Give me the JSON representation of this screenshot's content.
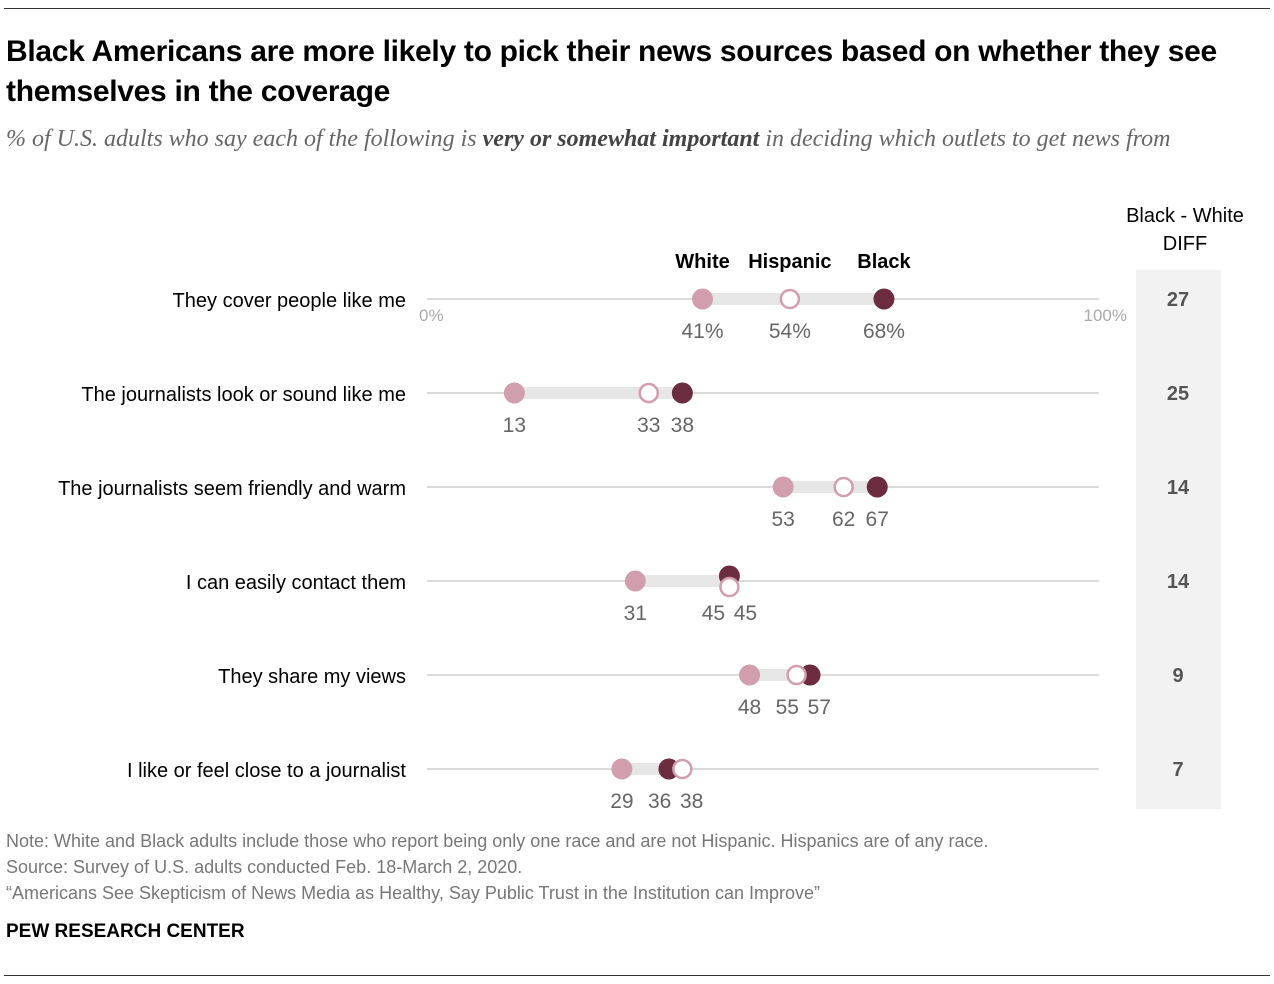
{
  "title": "Black Americans are more likely to pick their news sources based on whether they see themselves in the coverage",
  "subtitle": {
    "pre": "% of U.S. adults who say each of the following is ",
    "emph": "very or somewhat important",
    "post": " in deciding which outlets to get news from"
  },
  "chart_data": {
    "type": "dot",
    "xlim": [
      0,
      100
    ],
    "axis_labels": [
      "0%",
      "100%"
    ],
    "series": [
      {
        "name": "White",
        "color": "#d09eac",
        "style": "filled"
      },
      {
        "name": "Hispanic",
        "color": "#d09eac",
        "style": "hollow"
      },
      {
        "name": "Black",
        "color": "#6b2c40",
        "style": "filled"
      }
    ],
    "diff_header": [
      "Black - White",
      "DIFF"
    ],
    "rows": [
      {
        "label": "They cover people like me",
        "White": 41,
        "Hispanic": 54,
        "Black": 68,
        "diff": "27",
        "labels": {
          "White": "41%",
          "Hispanic": "54%",
          "Black": "68%"
        }
      },
      {
        "label": "The journalists look or sound like me",
        "White": 13,
        "Hispanic": 33,
        "Black": 38,
        "diff": "25",
        "labels": {
          "White": "13",
          "Hispanic": "33",
          "Black": "38"
        }
      },
      {
        "label": "The journalists seem friendly and warm",
        "White": 53,
        "Hispanic": 62,
        "Black": 67,
        "diff": "14",
        "labels": {
          "White": "53",
          "Hispanic": "62",
          "Black": "67"
        }
      },
      {
        "label": "I can easily contact them",
        "White": 31,
        "Hispanic": 45,
        "Black": 45,
        "diff": "14",
        "labels": {
          "White": "31",
          "Hispanic": "45",
          "Black": "45"
        }
      },
      {
        "label": "They share my views",
        "White": 48,
        "Hispanic": 55,
        "Black": 57,
        "diff": "9",
        "labels": {
          "White": "48",
          "Hispanic": "55",
          "Black": "57"
        }
      },
      {
        "label": "I like or feel close to a journalist",
        "White": 29,
        "Hispanic": 38,
        "Black": 36,
        "diff": "7",
        "labels": {
          "White": "29",
          "Hispanic": "38",
          "Black": "36"
        }
      }
    ]
  },
  "notes": {
    "note": "Note: White and Black adults include those who report being only one race and are not Hispanic. Hispanics are of any race.",
    "source": "Source: Survey of U.S. adults conducted Feb. 18-March 2, 2020.",
    "report": "“Americans See Skepticism of News Media as Healthy, Say Public Trust in the Institution can Improve”"
  },
  "brand": "PEW RESEARCH CENTER"
}
